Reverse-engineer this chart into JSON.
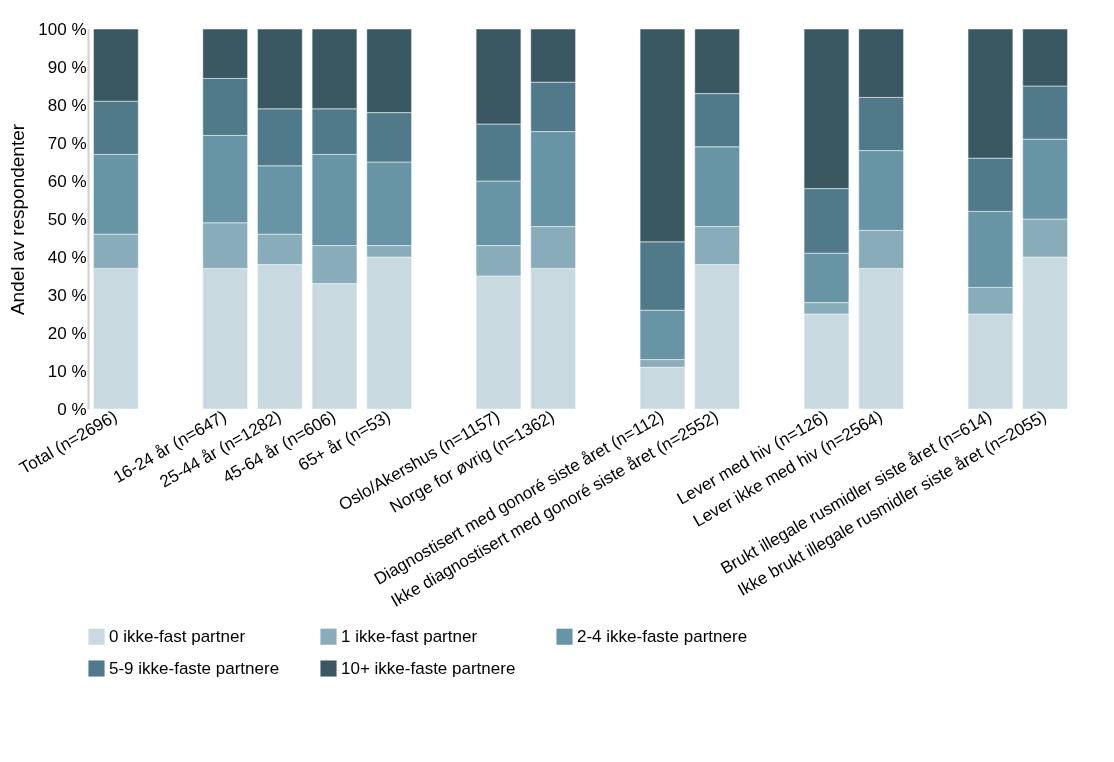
{
  "chart_data": {
    "type": "bar",
    "stacked": true,
    "ylabel": "Andel av respondenter",
    "legend": "bottom",
    "grid": false,
    "categories": [
      "Total (n=2696)",
      null,
      "16-24 år (n=647)",
      "25-44 år (n=1282)",
      "45-64 år (n=606)",
      "65+ år (n=53)",
      null,
      "Oslo/Akershus (n=1157)",
      "Norge for øvrig (n=1362)",
      null,
      "Diagnostisert med gonoré siste året (n=112)",
      "Ikke diagnostisert med gonoré siste året (n=2552)",
      null,
      "Lever med hiv (n=126)",
      "Lever ikke med hiv (n=2564)",
      null,
      "Brukt illegale rusmidler siste året (n=614)",
      "Ikke brukt illegale rusmidler siste året (n=2055)"
    ],
    "ylim": [
      0,
      100
    ],
    "yticks": [
      {
        "value": 0,
        "label": "0 %"
      },
      {
        "value": 10,
        "label": "10 %"
      },
      {
        "value": 20,
        "label": "20 %"
      },
      {
        "value": 30,
        "label": "30 %"
      },
      {
        "value": 40,
        "label": "40 %"
      },
      {
        "value": 50,
        "label": "50 %"
      },
      {
        "value": 60,
        "label": "60 %"
      },
      {
        "value": 70,
        "label": "70 %"
      },
      {
        "value": 80,
        "label": "80 %"
      },
      {
        "value": 90,
        "label": "90 %"
      },
      {
        "value": 100,
        "label": "100 %"
      }
    ],
    "series": [
      {
        "name": "0 ikke-fast partner",
        "color": "#c8d9e0",
        "values": [
          37,
          null,
          37,
          38,
          33,
          40,
          null,
          35,
          37,
          null,
          11,
          38,
          null,
          25,
          37,
          null,
          25,
          40
        ]
      },
      {
        "name": "1 ikke-fast partner",
        "color": "#88acba",
        "values": [
          9,
          null,
          12,
          8,
          10,
          3,
          null,
          8,
          11,
          null,
          2,
          10,
          null,
          3,
          10,
          null,
          7,
          10
        ]
      },
      {
        "name": "2-4 ikke-faste partnere",
        "color": "#6795a6",
        "values": [
          21,
          null,
          23,
          18,
          24,
          22,
          null,
          17,
          25,
          null,
          13,
          21,
          null,
          13,
          21,
          null,
          20,
          21
        ]
      },
      {
        "name": "5-9 ikke-faste partnere",
        "color": "#507a8a",
        "values": [
          14,
          null,
          15,
          15,
          12,
          13,
          null,
          15,
          13,
          null,
          18,
          14,
          null,
          17,
          14,
          null,
          14,
          14
        ]
      },
      {
        "name": "10+ ikke-faste partnere",
        "color": "#3a5862",
        "values": [
          19,
          null,
          13,
          21,
          21,
          22,
          null,
          25,
          14,
          null,
          56,
          17,
          null,
          42,
          18,
          null,
          34,
          15
        ]
      }
    ]
  }
}
